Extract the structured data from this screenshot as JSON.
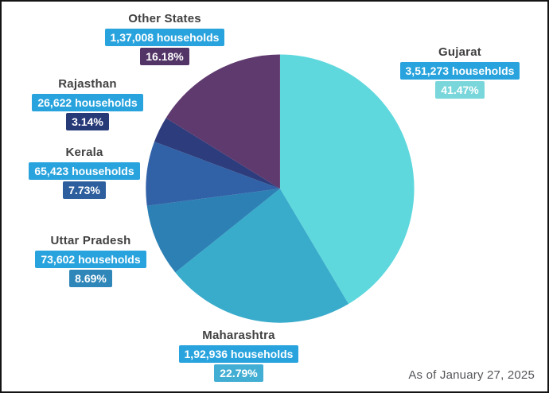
{
  "chart_data": {
    "type": "pie",
    "title": "",
    "unit": "households",
    "start_angle": "top",
    "direction": "clockwise",
    "legend_position": "callout-labels",
    "households_badge_bg": "#28a3dd",
    "footnote": "As of January 27, 2025",
    "slices": [
      {
        "id": "gujarat",
        "label": "Gujarat",
        "households": 351273,
        "households_label": "3,51,273 households",
        "percent_label": "41.47%",
        "value": 41.47,
        "color": "#5ed8dd",
        "percent_bg": "#79d6db"
      },
      {
        "id": "maharashtra",
        "label": "Maharashtra",
        "households": 192936,
        "households_label": "1,92,936 households",
        "percent_label": "22.79%",
        "value": 22.79,
        "color": "#39abcb",
        "percent_bg": "#43aed3"
      },
      {
        "id": "uttar-pradesh",
        "label": "Uttar Pradesh",
        "households": 73602,
        "households_label": "73,602 households",
        "percent_label": "8.69%",
        "value": 8.69,
        "color": "#2c80b4",
        "percent_bg": "#2f86b8"
      },
      {
        "id": "kerala",
        "label": "Kerala",
        "households": 65423,
        "households_label": "65,423 households",
        "percent_label": "7.73%",
        "value": 7.73,
        "color": "#3162a7",
        "percent_bg": "#2d5f9e"
      },
      {
        "id": "rajasthan",
        "label": "Rajasthan",
        "households": 26622,
        "households_label": "26,622 households",
        "percent_label": "3.14%",
        "value": 3.14,
        "color": "#2d3c7c",
        "percent_bg": "#273a78"
      },
      {
        "id": "other-states",
        "label": "Other States",
        "households": 137008,
        "households_label": "1,37,008 households",
        "percent_label": "16.18%",
        "value": 16.18,
        "color": "#5f3a6e",
        "percent_bg": "#523466"
      }
    ]
  }
}
